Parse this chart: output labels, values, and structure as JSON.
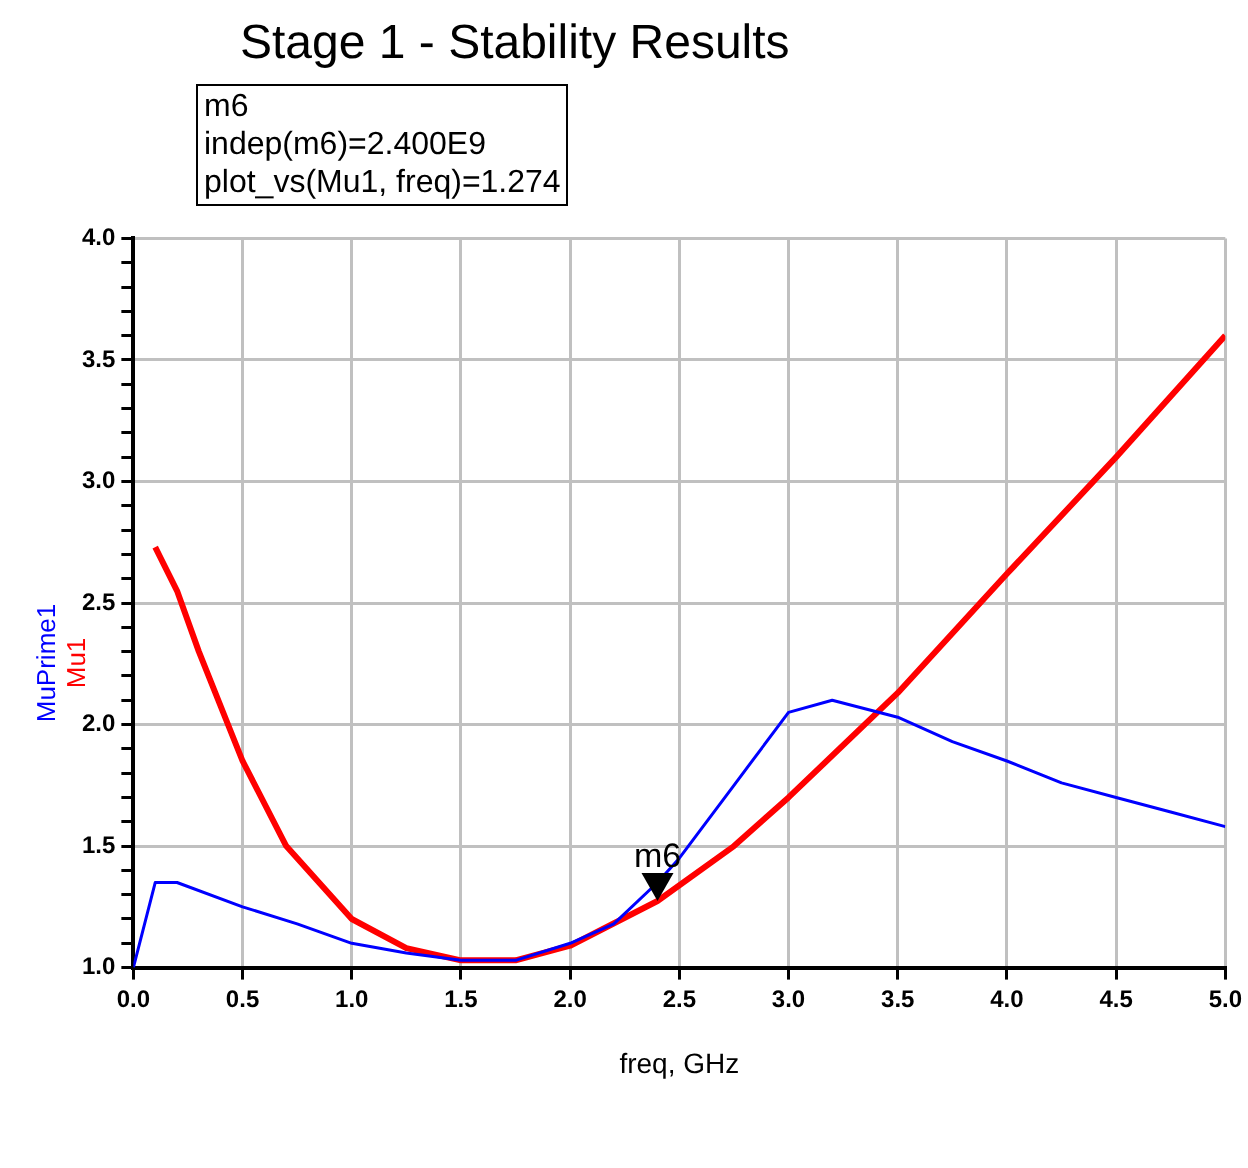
{
  "chart_data": {
    "type": "line",
    "title": "Stage 1 - Stability Results",
    "xlabel": "freq, GHz",
    "annotations": [
      "m6",
      "indep(m6)=2.400E9",
      "plot_vs(Mu1, freq)=1.274",
      {
        "text": "m6",
        "x": 2.4,
        "y": 1.274
      }
    ],
    "series": [
      {
        "name": "MuPrime1",
        "color": "#0000ff",
        "x": [
          0,
          0.1,
          0.2,
          0.5,
          0.75,
          1.0,
          1.25,
          1.5,
          1.75,
          2.0,
          2.2,
          2.4,
          2.5,
          2.75,
          3.0,
          3.2,
          3.5,
          3.75,
          4.0,
          4.25,
          4.5,
          4.75,
          5.0
        ],
        "values": [
          1.0,
          1.35,
          1.35,
          1.25,
          1.18,
          1.1,
          1.06,
          1.03,
          1.03,
          1.1,
          1.18,
          1.35,
          1.45,
          1.75,
          2.05,
          2.1,
          2.03,
          1.93,
          1.85,
          1.76,
          1.7,
          1.64,
          1.58
        ]
      },
      {
        "name": "Mu1",
        "color": "#ff0000",
        "x": [
          0.1,
          0.2,
          0.3,
          0.5,
          0.7,
          1.0,
          1.25,
          1.5,
          1.75,
          2.0,
          2.4,
          2.75,
          3.0,
          3.5,
          4.0,
          4.5,
          5.0
        ],
        "values": [
          2.73,
          2.55,
          2.3,
          1.85,
          1.5,
          1.2,
          1.08,
          1.03,
          1.03,
          1.09,
          1.274,
          1.5,
          1.7,
          2.13,
          2.62,
          3.1,
          3.6
        ]
      }
    ],
    "xlim": [
      0,
      5
    ],
    "xticks": [
      {
        "value": 0,
        "label": "0.0"
      },
      {
        "value": 0.5,
        "label": "0.5"
      },
      {
        "value": 1,
        "label": "1.0"
      },
      {
        "value": 1.5,
        "label": "1.5"
      },
      {
        "value": 2,
        "label": "2.0"
      },
      {
        "value": 2.5,
        "label": "2.5"
      },
      {
        "value": 3,
        "label": "3.0"
      },
      {
        "value": 3.5,
        "label": "3.5"
      },
      {
        "value": 4,
        "label": "4.0"
      },
      {
        "value": 4.5,
        "label": "4.5"
      },
      {
        "value": 5,
        "label": "5.0"
      }
    ],
    "ylim": [
      1,
      4
    ],
    "yticks": [
      {
        "value": 1,
        "label": "1.0"
      },
      {
        "value": 1.1,
        "label": null
      },
      {
        "value": 1.2,
        "label": null
      },
      {
        "value": 1.3,
        "label": null
      },
      {
        "value": 1.4,
        "label": null
      },
      {
        "value": 1.5,
        "label": "1.5"
      },
      {
        "value": 1.6,
        "label": null
      },
      {
        "value": 1.7,
        "label": null
      },
      {
        "value": 1.8,
        "label": null
      },
      {
        "value": 1.9,
        "label": null
      },
      {
        "value": 2,
        "label": "2.0"
      },
      {
        "value": 2.1,
        "label": null
      },
      {
        "value": 2.2,
        "label": null
      },
      {
        "value": 2.3,
        "label": null
      },
      {
        "value": 2.4,
        "label": null
      },
      {
        "value": 2.5,
        "label": "2.5"
      },
      {
        "value": 2.6,
        "label": null
      },
      {
        "value": 2.7,
        "label": null
      },
      {
        "value": 2.8,
        "label": null
      },
      {
        "value": 2.9,
        "label": null
      },
      {
        "value": 3,
        "label": "3.0"
      },
      {
        "value": 3.1,
        "label": null
      },
      {
        "value": 3.2,
        "label": null
      },
      {
        "value": 3.3,
        "label": null
      },
      {
        "value": 3.4,
        "label": null
      },
      {
        "value": 3.5,
        "label": "3.5"
      },
      {
        "value": 3.6,
        "label": null
      },
      {
        "value": 3.7,
        "label": null
      },
      {
        "value": 3.8,
        "label": null
      },
      {
        "value": 3.9,
        "label": null
      },
      {
        "value": 4,
        "label": "4.0"
      }
    ],
    "grid": true,
    "legend": false,
    "marker": "none",
    "line_style": "solid"
  }
}
